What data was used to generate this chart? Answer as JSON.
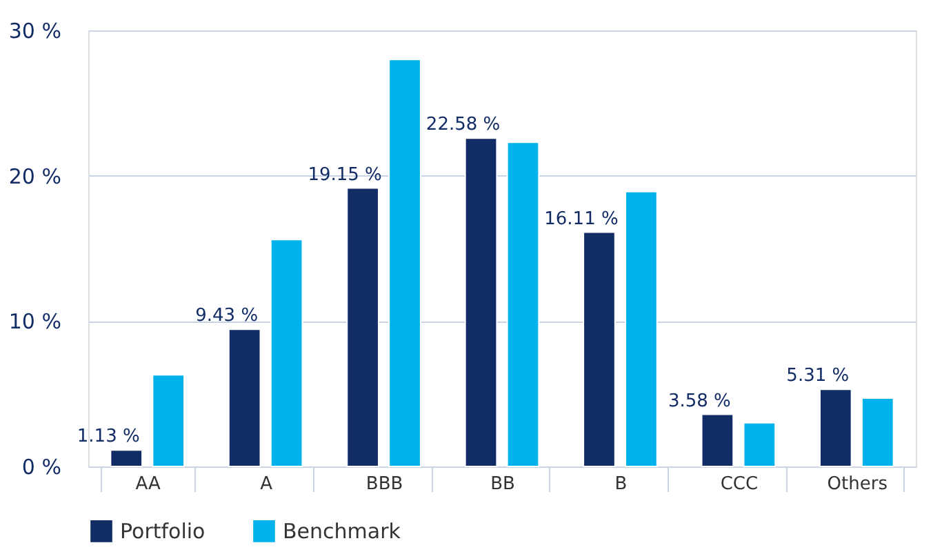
{
  "chart_data": {
    "type": "bar",
    "categories": [
      "AA",
      "A",
      "BBB",
      "BB",
      "B",
      "CCC",
      "Others"
    ],
    "series": [
      {
        "name": "Portfolio",
        "color": "#122c66",
        "values": [
          1.13,
          9.43,
          19.15,
          22.58,
          16.11,
          3.58,
          5.31
        ],
        "value_labels": [
          "1.13 %",
          "9.43 %",
          "19.15 %",
          "22.58 %",
          "16.11 %",
          "3.58 %",
          "5.31 %"
        ]
      },
      {
        "name": "Benchmark",
        "color": "#00b2eb",
        "values": [
          6.3,
          15.6,
          28.0,
          22.3,
          18.9,
          3.0,
          4.7
        ]
      }
    ],
    "ylim": [
      0,
      30
    ],
    "yticks": [
      {
        "value": 0,
        "label": "0 %"
      },
      {
        "value": 10,
        "label": "10 %"
      },
      {
        "value": 20,
        "label": "20 %"
      },
      {
        "value": 30,
        "label": "30 %"
      }
    ],
    "grid": "y",
    "legend": "bottom"
  }
}
